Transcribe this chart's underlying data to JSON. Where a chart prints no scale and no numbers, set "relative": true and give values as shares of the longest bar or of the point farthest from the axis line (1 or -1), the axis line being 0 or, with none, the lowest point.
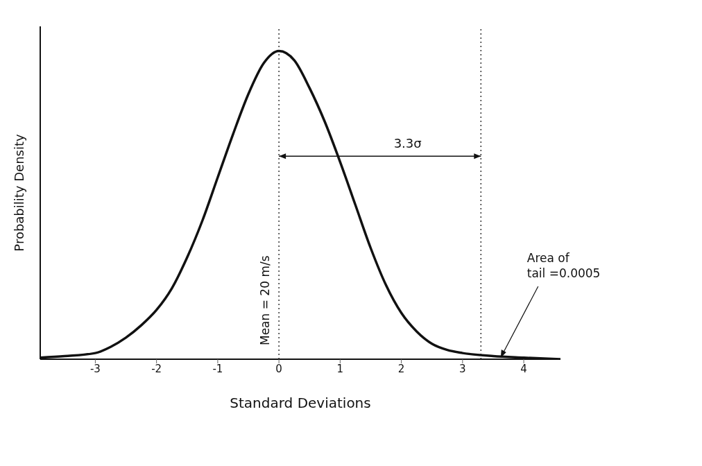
{
  "chart_data": {
    "type": "line",
    "relative": true,
    "xlabel": "Standard Deviations",
    "ylabel": "Probability Density",
    "x": [
      -3.9,
      -3.5,
      -3,
      -2.75,
      -2.5,
      -2.25,
      -2,
      -1.75,
      -1.5,
      -1.25,
      -1,
      -0.75,
      -0.5,
      -0.25,
      0,
      0.25,
      0.5,
      0.75,
      1,
      1.25,
      1.5,
      1.75,
      2,
      2.25,
      2.5,
      2.75,
      3,
      3.5,
      4,
      4.6
    ],
    "series": [
      {
        "color": "#111111",
        "values": [
          0.005,
          0.01,
          0.02,
          0.04,
          0.07,
          0.11,
          0.16,
          0.23,
          0.33,
          0.45,
          0.59,
          0.73,
          0.86,
          0.96,
          1,
          0.97,
          0.88,
          0.77,
          0.64,
          0.5,
          0.36,
          0.24,
          0.15,
          0.09,
          0.05,
          0.03,
          0.02,
          0.01,
          0.005,
          0
        ]
      }
    ],
    "xlim": [
      -3.9,
      4.6
    ],
    "xticks": [
      -3,
      -2,
      -1,
      0,
      1,
      2,
      3,
      4
    ],
    "ref_lines": [
      {
        "axis": "x",
        "value": 0,
        "line_style": "dotted",
        "color": "#333333"
      },
      {
        "axis": "x",
        "value": 3.3,
        "line_style": "dotted",
        "color": "#333333"
      }
    ],
    "annotations": [
      "Mean = 20 m/s",
      "3.3σ",
      {
        "text": "Area of tail =0.0005",
        "x": 3.6,
        "y": 0
      }
    ],
    "marker": "none",
    "line_style": "solid"
  }
}
